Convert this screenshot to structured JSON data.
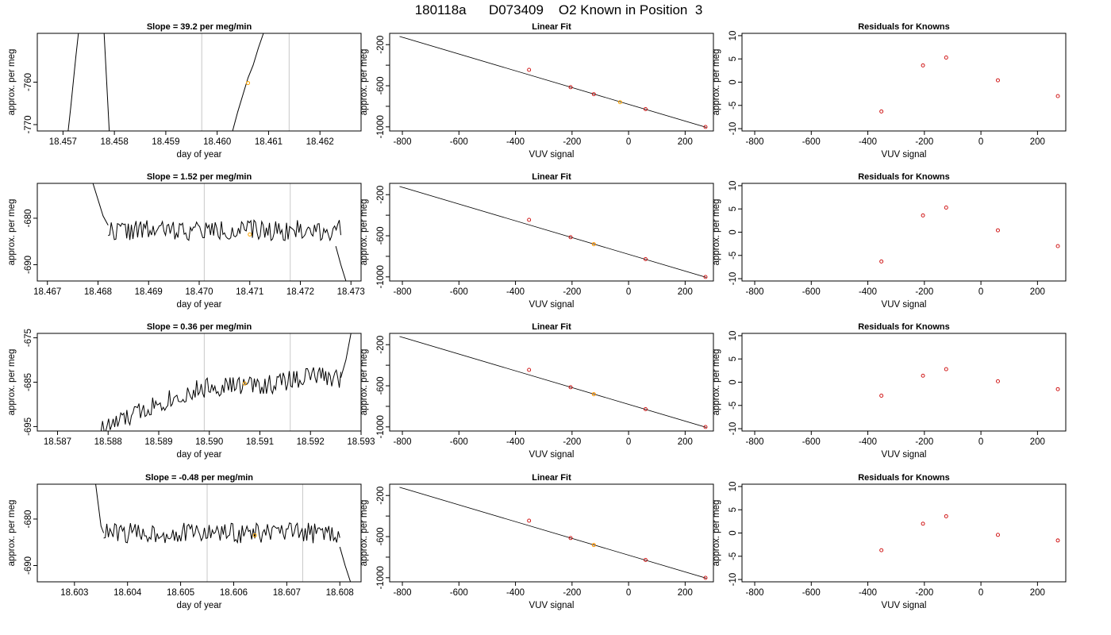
{
  "main_title": "180118a      D073409    O2 Known in Position  3",
  "colors": {
    "series_line": "#000000",
    "known_point": "#cc0000",
    "measured_point": "#ffa500",
    "window_marker": "#c8c8c8",
    "fit_line": "#000000"
  },
  "chart_data": [
    {
      "row": 1,
      "panels": [
        {
          "type": "line",
          "title": "Slope =  39.2  per meg/min",
          "xlabel": "day of year",
          "ylabel": "approx. per meg",
          "xlim": [
            18.4565,
            18.4628
          ],
          "ylim": [
            -771.5,
            -748.5
          ],
          "x_ticks": [
            "18.457",
            "18.458",
            "18.459",
            "18.460",
            "18.461",
            "18.462"
          ],
          "x_tick_values": [
            18.457,
            18.458,
            18.459,
            18.46,
            18.461,
            18.462
          ],
          "y_ticks": [
            "-770",
            "-760"
          ],
          "y_tick_values": [
            -770,
            -760
          ],
          "window_markers": [
            18.4597,
            18.4614
          ],
          "measured_point": {
            "x": 18.4606,
            "y": -760.2
          },
          "series_seed": 11,
          "series_segments": [
            {
              "x": [
                18.4571,
                18.45715,
                18.4572,
                18.45725,
                18.4573
              ],
              "y": [
                -771.5,
                -766,
                -760,
                -754,
                -748.5
              ]
            },
            {
              "x": [
                18.4578,
                18.45785,
                18.4579
              ],
              "y": [
                -748.5,
                -760,
                -771.5
              ]
            },
            {
              "x": [
                18.4603,
                18.4604,
                18.4605,
                18.4606,
                18.4607,
                18.4608,
                18.4609
              ],
              "y": [
                -771.5,
                -767,
                -763,
                -759,
                -756,
                -752,
                -748.5
              ]
            }
          ]
        },
        {
          "type": "line",
          "title": "Linear Fit",
          "xlabel": "VUV signal",
          "ylabel": "approx. per meg",
          "xlim": [
            -845,
            300
          ],
          "ylim": [
            -1040,
            -90
          ],
          "x_ticks": [
            "-800",
            "-600",
            "-400",
            "-200",
            "0",
            "200"
          ],
          "x_tick_values": [
            -800,
            -600,
            -400,
            -200,
            0,
            200
          ],
          "y_ticks": [
            "-1000",
            "-600",
            "-200"
          ],
          "y_tick_values": [
            -1000,
            -600,
            -200
          ],
          "y_minor_ticks": [
            -800,
            -400
          ],
          "fit_line": {
            "x": [
              -810,
              275
            ],
            "y": [
              -120,
              -1005
            ]
          },
          "known_points": {
            "x": [
              -352,
              -205,
              -123,
              60,
              272
            ],
            "y": [
              -445,
              -614,
              -682,
              -827,
              -1001
            ]
          },
          "measured_point": {
            "x": -30,
            "y": -760
          }
        },
        {
          "type": "scatter",
          "title": "Residuals for Knowns",
          "xlabel": "VUV signal",
          "ylabel": "approx. per meg",
          "xlim": [
            -845,
            300
          ],
          "ylim": [
            -10.5,
            10.5
          ],
          "x_ticks": [
            "-800",
            "-600",
            "-400",
            "-200",
            "0",
            "200"
          ],
          "x_tick_values": [
            -800,
            -600,
            -400,
            -200,
            0,
            200
          ],
          "y_ticks": [
            "-10",
            "-5",
            "0",
            "5",
            "10"
          ],
          "y_tick_values": [
            -10,
            -5,
            0,
            5,
            10
          ],
          "known_points": {
            "x": [
              -352,
              -205,
              -123,
              60,
              272
            ],
            "y": [
              -6.3,
              3.6,
              5.3,
              0.4,
              -3.0
            ]
          }
        }
      ]
    },
    {
      "row": 2,
      "panels": [
        {
          "type": "line",
          "title": "Slope =  1.52  per meg/min",
          "xlabel": "day of year",
          "ylabel": "approx. per meg",
          "xlim": [
            18.4668,
            18.4732
          ],
          "ylim": [
            -693.5,
            -672.5
          ],
          "x_ticks": [
            "18.467",
            "18.468",
            "18.469",
            "18.470",
            "18.471",
            "18.472",
            "18.473"
          ],
          "x_tick_values": [
            18.467,
            18.468,
            18.469,
            18.47,
            18.471,
            18.472,
            18.473
          ],
          "y_ticks": [
            "-690",
            "-680"
          ],
          "y_tick_values": [
            -690,
            -680
          ],
          "window_markers": [
            18.4701,
            18.4718
          ],
          "measured_point": {
            "x": 18.471,
            "y": -683.5
          },
          "series_seed": 22,
          "series_segments": [
            {
              "x": [
                18.4679,
                18.468,
                18.4681,
                18.4682
              ],
              "y": [
                -672.5,
                -676,
                -679.5,
                -681.5
              ]
            },
            {
              "x": [
                18.4682,
                18.4728
              ],
              "y": [
                -682.6,
                -682.6
              ],
              "noise": 2.2,
              "steps": 150
            },
            {
              "x": [
                18.4727,
                18.4728,
                18.4729
              ],
              "y": [
                -686,
                -690,
                -693.5
              ]
            }
          ]
        },
        {
          "type": "line",
          "title": "Linear Fit",
          "xlabel": "VUV signal",
          "ylabel": "approx. per meg",
          "xlim": [
            -845,
            300
          ],
          "ylim": [
            -1040,
            -90
          ],
          "x_ticks": [
            "-800",
            "-600",
            "-400",
            "-200",
            "0",
            "200"
          ],
          "x_tick_values": [
            -800,
            -600,
            -400,
            -200,
            0,
            200
          ],
          "y_ticks": [
            "-1000",
            "-600",
            "-200"
          ],
          "y_tick_values": [
            -1000,
            -600,
            -200
          ],
          "y_minor_ticks": [
            -800,
            -400
          ],
          "fit_line": {
            "x": [
              -810,
              275
            ],
            "y": [
              -120,
              -1005
            ]
          },
          "known_points": {
            "x": [
              -352,
              -205,
              -123,
              60,
              272
            ],
            "y": [
              -445,
              -614,
              -682,
              -827,
              -1001
            ]
          },
          "measured_point": {
            "x": -123,
            "y": -682
          }
        },
        {
          "type": "scatter",
          "title": "Residuals for Knowns",
          "xlabel": "VUV signal",
          "ylabel": "approx. per meg",
          "xlim": [
            -845,
            300
          ],
          "ylim": [
            -10.5,
            10.5
          ],
          "x_ticks": [
            "-800",
            "-600",
            "-400",
            "-200",
            "0",
            "200"
          ],
          "x_tick_values": [
            -800,
            -600,
            -400,
            -200,
            0,
            200
          ],
          "y_ticks": [
            "-10",
            "-5",
            "0",
            "5",
            "10"
          ],
          "y_tick_values": [
            -10,
            -5,
            0,
            5,
            10
          ],
          "known_points": {
            "x": [
              -352,
              -205,
              -123,
              60,
              272
            ],
            "y": [
              -6.3,
              3.6,
              5.3,
              0.4,
              -3.0
            ]
          }
        }
      ]
    },
    {
      "row": 3,
      "panels": [
        {
          "type": "line",
          "title": "Slope =  0.36  per meg/min",
          "xlabel": "day of year",
          "ylabel": "approx. per meg",
          "xlim": [
            18.5866,
            18.593
          ],
          "ylim": [
            -696,
            -674
          ],
          "x_ticks": [
            "18.587",
            "18.588",
            "18.589",
            "18.590",
            "18.591",
            "18.592",
            "18.593"
          ],
          "x_tick_values": [
            18.587,
            18.588,
            18.589,
            18.59,
            18.591,
            18.592,
            18.593
          ],
          "y_ticks": [
            "-695",
            "-685",
            "-675"
          ],
          "y_tick_values": [
            -695,
            -685,
            -675
          ],
          "window_markers": [
            18.5899,
            18.5916
          ],
          "measured_point": {
            "x": 18.5907,
            "y": -685.3
          },
          "series_seed": 33,
          "series_segments": [
            {
              "x": [
                18.5878,
                18.5884,
                18.589,
                18.59,
                18.5912,
                18.592,
                18.5926
              ],
              "y": [
                -696,
                -693,
                -689.5,
                -686,
                -685.5,
                -683.5,
                -684
              ],
              "noise": 2.3,
              "steps": 160
            },
            {
              "x": [
                18.5926,
                18.5927,
                18.5928
              ],
              "y": [
                -684,
                -680,
                -674
              ]
            }
          ]
        },
        {
          "type": "line",
          "title": "Linear Fit",
          "xlabel": "VUV signal",
          "ylabel": "approx. per meg",
          "xlim": [
            -845,
            300
          ],
          "ylim": [
            -1040,
            -90
          ],
          "x_ticks": [
            "-800",
            "-600",
            "-400",
            "-200",
            "0",
            "200"
          ],
          "x_tick_values": [
            -800,
            -600,
            -400,
            -200,
            0,
            200
          ],
          "y_ticks": [
            "-1000",
            "-600",
            "-200"
          ],
          "y_tick_values": [
            -1000,
            -600,
            -200
          ],
          "y_minor_ticks": [
            -800,
            -400
          ],
          "fit_line": {
            "x": [
              -810,
              275
            ],
            "y": [
              -120,
              -1005
            ]
          },
          "known_points": {
            "x": [
              -352,
              -205,
              -123,
              60,
              272
            ],
            "y": [
              -445,
              -614,
              -682,
              -827,
              -1001
            ]
          },
          "measured_point": {
            "x": -123,
            "y": -682
          }
        },
        {
          "type": "scatter",
          "title": "Residuals for Knowns",
          "xlabel": "VUV signal",
          "ylabel": "approx. per meg",
          "xlim": [
            -845,
            300
          ],
          "ylim": [
            -10.5,
            10.5
          ],
          "x_ticks": [
            "-800",
            "-600",
            "-400",
            "-200",
            "0",
            "200"
          ],
          "x_tick_values": [
            -800,
            -600,
            -400,
            -200,
            0,
            200
          ],
          "y_ticks": [
            "-10",
            "-5",
            "0",
            "5",
            "10"
          ],
          "y_tick_values": [
            -10,
            -5,
            0,
            5,
            10
          ],
          "known_points": {
            "x": [
              -352,
              -205,
              -123,
              60,
              272
            ],
            "y": [
              -2.9,
              1.4,
              2.8,
              0.2,
              -1.5
            ]
          }
        }
      ]
    },
    {
      "row": 4,
      "panels": [
        {
          "type": "line",
          "title": "Slope =  -0.48  per meg/min",
          "xlabel": "day of year",
          "ylabel": "approx. per meg",
          "xlim": [
            18.6023,
            18.6084
          ],
          "ylim": [
            -693.5,
            -672.5
          ],
          "x_ticks": [
            "18.603",
            "18.604",
            "18.605",
            "18.606",
            "18.607",
            "18.608"
          ],
          "x_tick_values": [
            18.603,
            18.604,
            18.605,
            18.606,
            18.607,
            18.608
          ],
          "y_ticks": [
            "-690",
            "-680"
          ],
          "y_tick_values": [
            -690,
            -680
          ],
          "window_markers": [
            18.6055,
            18.6073
          ],
          "measured_point": {
            "x": 18.6064,
            "y": -683.5
          },
          "series_seed": 44,
          "series_segments": [
            {
              "x": [
                18.6034,
                18.60345,
                18.6035,
                18.60355
              ],
              "y": [
                -672.5,
                -677,
                -681.5,
                -683
              ]
            },
            {
              "x": [
                18.60355,
                18.608
              ],
              "y": [
                -683,
                -683
              ],
              "noise": 2.2,
              "steps": 150
            },
            {
              "x": [
                18.608,
                18.6081,
                18.6082
              ],
              "y": [
                -686,
                -690,
                -693.5
              ]
            }
          ]
        },
        {
          "type": "line",
          "title": "Linear Fit",
          "xlabel": "VUV signal",
          "ylabel": "approx. per meg",
          "xlim": [
            -845,
            300
          ],
          "ylim": [
            -1040,
            -90
          ],
          "x_ticks": [
            "-800",
            "-600",
            "-400",
            "-200",
            "0",
            "200"
          ],
          "x_tick_values": [
            -800,
            -600,
            -400,
            -200,
            0,
            200
          ],
          "y_ticks": [
            "-1000",
            "-600",
            "-200"
          ],
          "y_tick_values": [
            -1000,
            -600,
            -200
          ],
          "y_minor_ticks": [
            -800,
            -400
          ],
          "fit_line": {
            "x": [
              -810,
              275
            ],
            "y": [
              -120,
              -1005
            ]
          },
          "known_points": {
            "x": [
              -352,
              -205,
              -123,
              60,
              272
            ],
            "y": [
              -445,
              -614,
              -682,
              -827,
              -1001
            ]
          },
          "measured_point": {
            "x": -123,
            "y": -682
          }
        },
        {
          "type": "scatter",
          "title": "Residuals for Knowns",
          "xlabel": "VUV signal",
          "ylabel": "approx. per meg",
          "xlim": [
            -845,
            300
          ],
          "ylim": [
            -10.5,
            10.5
          ],
          "x_ticks": [
            "-800",
            "-600",
            "-400",
            "-200",
            "0",
            "200"
          ],
          "x_tick_values": [
            -800,
            -600,
            -400,
            -200,
            0,
            200
          ],
          "y_ticks": [
            "-10",
            "-5",
            "0",
            "5",
            "10"
          ],
          "y_tick_values": [
            -10,
            -5,
            0,
            5,
            10
          ],
          "known_points": {
            "x": [
              -352,
              -205,
              -123,
              60,
              272
            ],
            "y": [
              -3.7,
              2.0,
              3.6,
              -0.4,
              -1.6
            ]
          }
        }
      ]
    }
  ]
}
